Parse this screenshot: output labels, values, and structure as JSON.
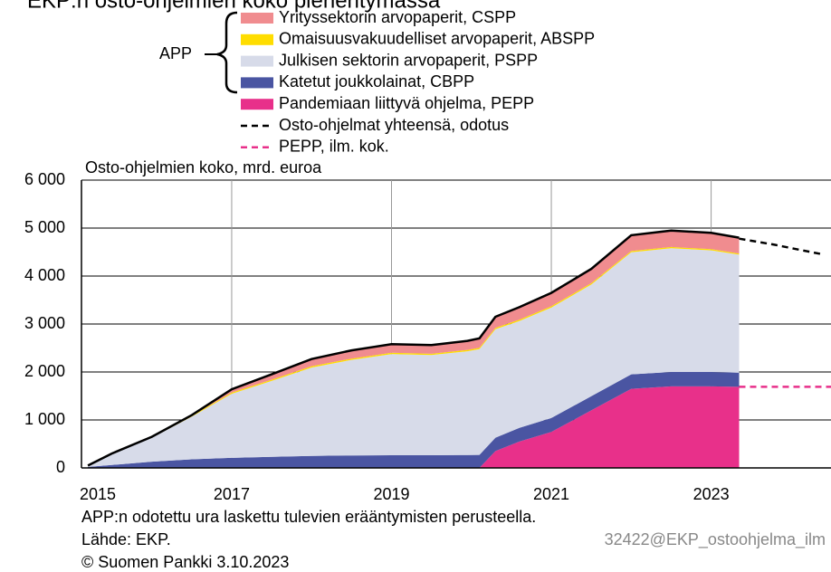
{
  "chart_data": {
    "type": "stacked_area",
    "title": "EKP:n osto-ohjelmien koko pienentymässä",
    "y_label": "Osto-ohjelmien koko, mrd. euroa",
    "app_group": "APP",
    "note": "APP:n odotettu ura laskettu tulevien erääntymisten perusteella.",
    "source": "Lähde: EKP.",
    "copyright": "© Suomen Pankki 3.10.2023",
    "code": "32422@EKP_ostoohjelma_ilm",
    "xlim": [
      2015.12,
      2024.5
    ],
    "xticks": [
      2015,
      2017,
      2019,
      2021,
      2023
    ],
    "ylim": [
      0,
      6000
    ],
    "yticks": [
      0,
      {
        "value": 1000,
        "label": "1 000"
      },
      {
        "value": 2000,
        "label": "2 000"
      },
      {
        "value": 3000,
        "label": "3 000"
      },
      {
        "value": 4000,
        "label": "4 000"
      },
      {
        "value": 5000,
        "label": "5 000"
      },
      {
        "value": 6000,
        "label": "6 000"
      }
    ],
    "grid": true,
    "x": [
      2015.2,
      2015.5,
      2016,
      2016.5,
      2017,
      2017.5,
      2018,
      2018.5,
      2019,
      2019.5,
      2019.95,
      2020.1,
      2020.3,
      2020.6,
      2021,
      2021.5,
      2022,
      2022.5,
      2023,
      2023.35
    ],
    "series": [
      {
        "name": "Yrityssektorin arvopaperit, CSPP",
        "color": "#f08c8f",
        "values": [
          0,
          0,
          0,
          10,
          70,
          110,
          150,
          170,
          180,
          180,
          190,
          195,
          230,
          260,
          280,
          300,
          330,
          345,
          340,
          330
        ]
      },
      {
        "name": "Omaisuusvakuudelliset arvopaperit, ABSPP",
        "color": "#ffdd00",
        "values": [
          5,
          10,
          20,
          22,
          25,
          27,
          28,
          28,
          28,
          28,
          28,
          28,
          30,
          30,
          28,
          27,
          26,
          25,
          25,
          24
        ]
      },
      {
        "name": "Julkisen sektorin arvopaperit, PSPP",
        "color": "#d7dbe9",
        "values": [
          25,
          230,
          500,
          888,
          1335,
          1583,
          1842,
          1992,
          2107,
          2087,
          2162,
          2205,
          2260,
          2225,
          2302,
          2328,
          2544,
          2580,
          2535,
          2461
        ]
      },
      {
        "name": "Katetut joukkolainat, CBPP",
        "color": "#4a55a2",
        "values": [
          20,
          60,
          130,
          180,
          210,
          230,
          250,
          260,
          265,
          265,
          270,
          272,
          280,
          285,
          290,
          295,
          300,
          300,
          300,
          295
        ]
      },
      {
        "name": "Pandemiaan liittyvä ohjelma, PEPP",
        "color": "#e8308a",
        "values": [
          0,
          0,
          0,
          0,
          0,
          0,
          0,
          0,
          0,
          0,
          0,
          0,
          350,
          550,
          750,
          1200,
          1650,
          1700,
          1700,
          1690
        ]
      }
    ],
    "lines": [
      {
        "name": "Osto-ohjelmat yhteensä, odotus",
        "color": "#000000",
        "dashed": true,
        "x": [
          2023.35,
          2023.8,
          2024.1,
          2024.4
        ],
        "values": [
          4780,
          4650,
          4550,
          4450
        ]
      },
      {
        "name": "PEPP, ilm. kok.",
        "color": "#e8308a",
        "dashed": true,
        "x": [
          2023.35,
          2024.5
        ],
        "values": [
          1690,
          1690
        ]
      }
    ]
  }
}
